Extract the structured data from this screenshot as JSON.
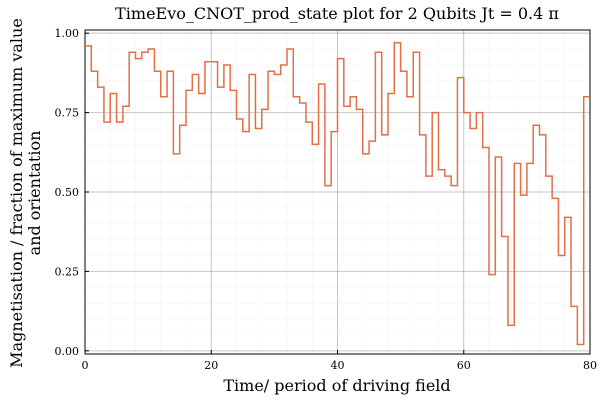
{
  "chart_data": {
    "type": "line",
    "title": "TimeEvo_CNOT_prod_state plot for 2 Qubits Jt = 0.4 π",
    "xlabel": "Time/ period of driving field",
    "ylabel_line1": "Magnetisation / fraction of maximum value",
    "ylabel_line2": "and orientation",
    "xlim": [
      0,
      80
    ],
    "ylim": [
      -0.01,
      1.01
    ],
    "xticks": [
      0,
      20,
      40,
      60,
      80
    ],
    "xtick_labels": [
      "0",
      "20",
      "40",
      "60",
      "80"
    ],
    "yticks": [
      0.0,
      0.25,
      0.5,
      0.75,
      1.0
    ],
    "ytick_labels": [
      "0.00",
      "0.25",
      "0.50",
      "0.75",
      "1.00"
    ],
    "grid": true,
    "legend": "none",
    "step": "post",
    "series": [
      {
        "color": "#e26f46",
        "x": [
          0,
          1,
          2,
          3,
          4,
          5,
          6,
          7,
          8,
          9,
          10,
          11,
          12,
          13,
          14,
          15,
          16,
          17,
          18,
          19,
          20,
          21,
          22,
          23,
          24,
          25,
          26,
          27,
          28,
          29,
          30,
          31,
          32,
          33,
          34,
          35,
          36,
          37,
          38,
          39,
          40,
          41,
          42,
          43,
          44,
          45,
          46,
          47,
          48,
          49,
          50,
          51,
          52,
          53,
          54,
          55,
          56,
          57,
          58,
          59,
          60,
          61,
          62,
          63,
          64,
          65,
          66,
          67,
          68,
          69,
          70,
          71,
          72,
          73,
          74,
          75,
          76,
          77,
          78,
          79,
          80
        ],
        "y": [
          0.96,
          0.88,
          0.83,
          0.72,
          0.81,
          0.72,
          0.77,
          0.94,
          0.92,
          0.94,
          0.95,
          0.88,
          0.8,
          0.88,
          0.62,
          0.71,
          0.82,
          0.87,
          0.81,
          0.91,
          0.91,
          0.83,
          0.9,
          0.82,
          0.73,
          0.69,
          0.87,
          0.7,
          0.76,
          0.88,
          0.87,
          0.9,
          0.95,
          0.8,
          0.78,
          0.72,
          0.65,
          0.84,
          0.52,
          0.69,
          0.92,
          0.77,
          0.8,
          0.76,
          0.62,
          0.66,
          0.94,
          0.68,
          0.81,
          0.97,
          0.88,
          0.8,
          0.94,
          0.68,
          0.55,
          0.75,
          0.57,
          0.55,
          0.52,
          0.86,
          0.75,
          0.7,
          0.75,
          0.64,
          0.24,
          0.61,
          0.36,
          0.08,
          0.59,
          0.49,
          0.59,
          0.71,
          0.68,
          0.55,
          0.48,
          0.3,
          0.42,
          0.14,
          0.02,
          0.8,
          0.8
        ]
      }
    ]
  }
}
